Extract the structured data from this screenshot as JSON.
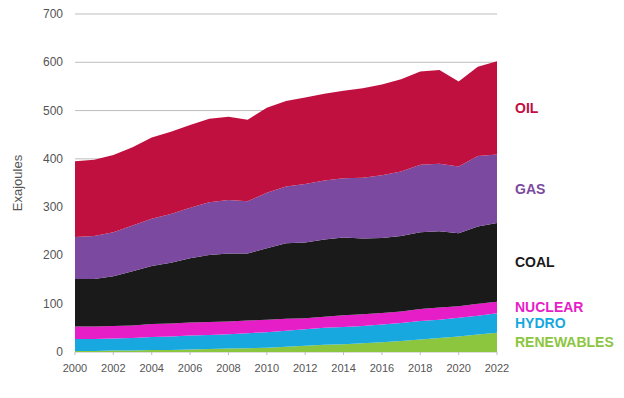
{
  "chart_data": {
    "type": "area",
    "stacked": true,
    "y_label": "Exajoules",
    "x": [
      2000,
      2001,
      2002,
      2003,
      2004,
      2005,
      2006,
      2007,
      2008,
      2009,
      2010,
      2011,
      2012,
      2013,
      2014,
      2015,
      2016,
      2017,
      2018,
      2019,
      2020,
      2021,
      2022
    ],
    "xlim": [
      2000,
      2022
    ],
    "xticks": [
      2000,
      2002,
      2004,
      2006,
      2008,
      2010,
      2012,
      2014,
      2016,
      2018,
      2020,
      2022
    ],
    "ylim": [
      0,
      700
    ],
    "yticks": [
      0,
      100,
      200,
      300,
      400,
      500,
      600,
      700
    ],
    "grid": true,
    "legend": "right",
    "series": [
      {
        "name": "RENEWABLES",
        "color": "#8cc63f",
        "values": [
          2,
          2,
          3,
          3,
          4,
          4,
          5,
          6,
          7,
          8,
          9,
          11,
          13,
          15,
          16,
          18,
          20,
          23,
          26,
          29,
          32,
          36,
          40
        ]
      },
      {
        "name": "HYDRO",
        "color": "#17a8e0",
        "values": [
          25,
          25,
          25,
          26,
          27,
          28,
          29,
          29,
          30,
          31,
          32,
          33,
          34,
          35,
          36,
          36,
          37,
          37,
          38,
          38,
          39,
          39,
          40
        ]
      },
      {
        "name": "NUCLEAR",
        "color": "#e61ec8",
        "values": [
          26,
          26,
          26,
          26,
          27,
          27,
          27,
          27,
          26,
          26,
          26,
          25,
          23,
          23,
          24,
          24,
          24,
          24,
          25,
          25,
          24,
          25,
          24
        ]
      },
      {
        "name": "COAL",
        "color": "#1a1a1a",
        "values": [
          98,
          98,
          103,
          112,
          120,
          126,
          133,
          139,
          141,
          139,
          148,
          156,
          157,
          160,
          161,
          157,
          155,
          156,
          159,
          158,
          151,
          160,
          163
        ]
      },
      {
        "name": "GAS",
        "color": "#7b4aa0",
        "values": [
          87,
          89,
          91,
          95,
          98,
          101,
          105,
          109,
          111,
          108,
          115,
          118,
          121,
          122,
          123,
          126,
          130,
          134,
          140,
          140,
          138,
          146,
          142
        ]
      },
      {
        "name": "OIL",
        "color": "#c0103f",
        "values": [
          157,
          158,
          160,
          162,
          168,
          170,
          171,
          173,
          172,
          169,
          176,
          177,
          179,
          180,
          181,
          185,
          188,
          191,
          193,
          194,
          176,
          185,
          193
        ]
      }
    ]
  }
}
